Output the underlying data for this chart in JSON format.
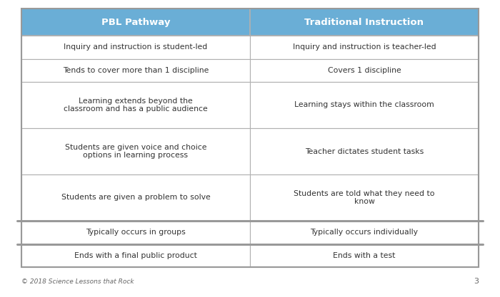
{
  "title_left": "PBL Pathway",
  "title_right": "Traditional Instruction",
  "header_bg": "#6aaed6",
  "header_text_color": "#ffffff",
  "row_bg": "#ffffff",
  "row_text_color": "#333333",
  "border_color": "#b0b0b0",
  "rows": [
    [
      "Inquiry and instruction is student-led",
      "Inquiry and instruction is teacher-led"
    ],
    [
      "Tends to cover more than 1 discipline",
      "Covers 1 discipline"
    ],
    [
      "Learning extends beyond the\nclassroom and has a public audience",
      "Learning stays within the classroom"
    ],
    [
      "Students are given voice and choice\noptions in learning process",
      "Teacher dictates student tasks"
    ],
    [
      "Students are given a problem to solve",
      "Students are told what they need to\nknow"
    ],
    [
      "Typically occurs in groups",
      "Typically occurs individually"
    ],
    [
      "Ends with a final public product",
      "Ends with a test"
    ]
  ],
  "footer_text": "© 2018 Science Lessons that Rock",
  "page_number": "3",
  "background_color": "#ffffff",
  "fig_width": 7.0,
  "fig_height": 4.17,
  "dpi": 100
}
